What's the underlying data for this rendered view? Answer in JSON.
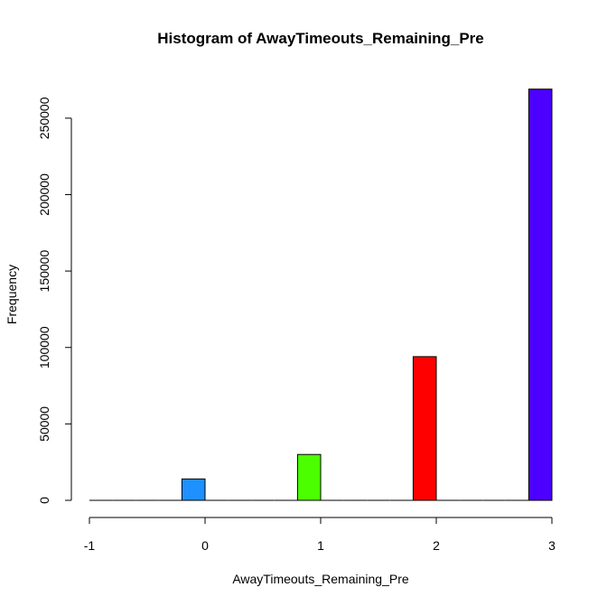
{
  "chart_data": {
    "type": "bar",
    "title": "Histogram of AwayTimeouts_Remaining_Pre",
    "xlabel": "AwayTimeouts_Remaining_Pre",
    "ylabel": "Frequency",
    "xlim": [
      -1,
      3
    ],
    "ylim": [
      0,
      270000
    ],
    "x_ticks": [
      -1,
      0,
      1,
      2,
      3
    ],
    "y_ticks": [
      0,
      50000,
      100000,
      150000,
      200000,
      250000
    ],
    "bins": [
      {
        "x_start": -1.0,
        "x_end": -0.8,
        "value": 0,
        "color": "#000000"
      },
      {
        "x_start": -0.8,
        "x_end": -0.6,
        "value": 0,
        "color": "#000000"
      },
      {
        "x_start": -0.6,
        "x_end": -0.4,
        "value": 0,
        "color": "#000000"
      },
      {
        "x_start": -0.4,
        "x_end": -0.2,
        "value": 0,
        "color": "#000000"
      },
      {
        "x_start": -0.2,
        "x_end": 0.0,
        "value": 14000,
        "color": "#1e90ff"
      },
      {
        "x_start": 0.0,
        "x_end": 0.2,
        "value": 0,
        "color": "#000000"
      },
      {
        "x_start": 0.2,
        "x_end": 0.4,
        "value": 0,
        "color": "#000000"
      },
      {
        "x_start": 0.4,
        "x_end": 0.6,
        "value": 0,
        "color": "#000000"
      },
      {
        "x_start": 0.6,
        "x_end": 0.8,
        "value": 0,
        "color": "#000000"
      },
      {
        "x_start": 0.8,
        "x_end": 1.0,
        "value": 30000,
        "color": "#4cff00"
      },
      {
        "x_start": 1.0,
        "x_end": 1.2,
        "value": 0,
        "color": "#000000"
      },
      {
        "x_start": 1.2,
        "x_end": 1.4,
        "value": 0,
        "color": "#000000"
      },
      {
        "x_start": 1.4,
        "x_end": 1.6,
        "value": 0,
        "color": "#000000"
      },
      {
        "x_start": 1.6,
        "x_end": 1.8,
        "value": 0,
        "color": "#000000"
      },
      {
        "x_start": 1.8,
        "x_end": 2.0,
        "value": 94000,
        "color": "#ff0000"
      },
      {
        "x_start": 2.0,
        "x_end": 2.2,
        "value": 0,
        "color": "#000000"
      },
      {
        "x_start": 2.2,
        "x_end": 2.4,
        "value": 0,
        "color": "#000000"
      },
      {
        "x_start": 2.4,
        "x_end": 2.6,
        "value": 0,
        "color": "#000000"
      },
      {
        "x_start": 2.6,
        "x_end": 2.8,
        "value": 0,
        "color": "#000000"
      },
      {
        "x_start": 2.8,
        "x_end": 3.0,
        "value": 269000,
        "color": "#4c00ff"
      }
    ],
    "grid": false,
    "legend": "none"
  }
}
